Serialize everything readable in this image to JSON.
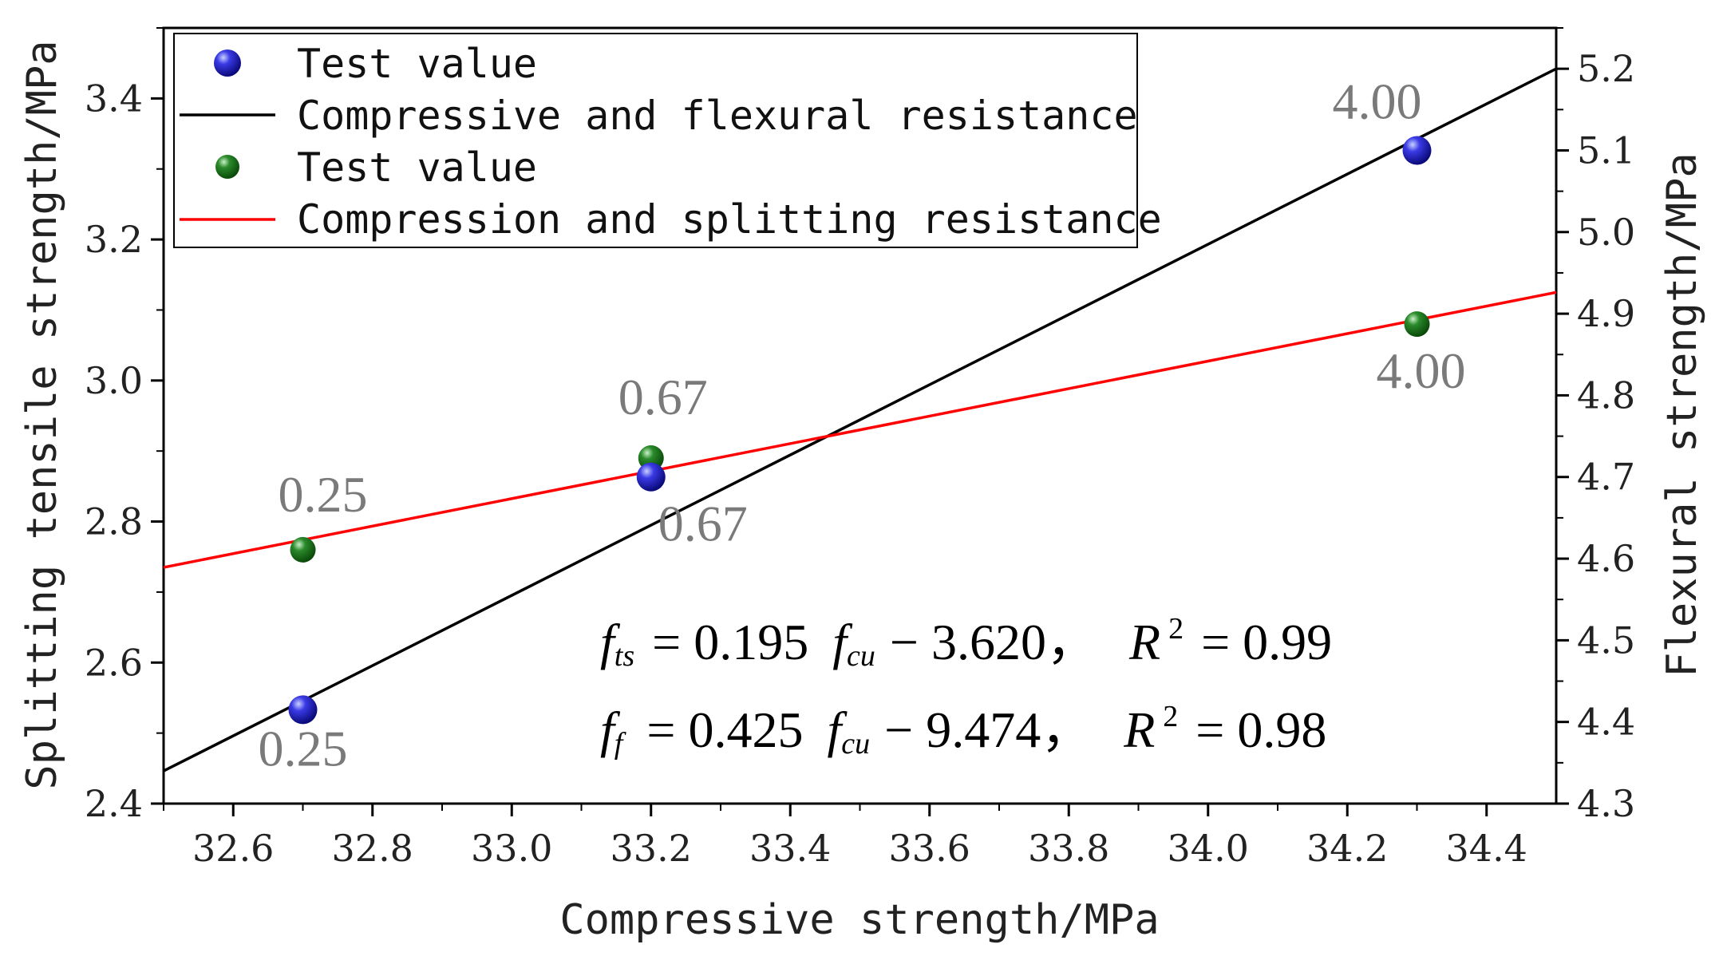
{
  "chart_data": {
    "type": "scatter",
    "xlabel": "Compressive strength/MPa",
    "ylabel_left": "Splitting tensile strength/MPa",
    "ylabel_right": "Flexural strength/MPa",
    "xlim": [
      32.5,
      34.5
    ],
    "ylim_left": [
      2.4,
      3.5
    ],
    "ylim_right": [
      4.3,
      5.25
    ],
    "x_ticks": [
      "32.6",
      "32.8",
      "33.0",
      "33.2",
      "33.4",
      "33.6",
      "33.8",
      "34.0",
      "34.2",
      "34.4"
    ],
    "y_left_ticks": [
      "2.4",
      "2.6",
      "2.8",
      "3.0",
      "3.2",
      "3.4"
    ],
    "y_right_ticks": [
      "4.3",
      "4.4",
      "4.5",
      "4.6",
      "4.7",
      "4.8",
      "4.9",
      "5.0",
      "5.1",
      "5.2"
    ],
    "legend": {
      "position": "top-left",
      "entries": [
        {
          "label": "Test value",
          "marker": "blue-sphere"
        },
        {
          "label": "Compressive and flexural resistance",
          "marker": "black-line"
        },
        {
          "label": "Test value",
          "marker": "green-sphere"
        },
        {
          "label": "Compression and splitting resistance",
          "marker": "red-line"
        }
      ]
    },
    "series": [
      {
        "id": "flexural-points",
        "axis": "right",
        "color": "#1a1acc",
        "points": [
          {
            "x": 32.7,
            "y": 4.415,
            "label": "0.25"
          },
          {
            "x": 33.2,
            "y": 4.7,
            "label": "0.67"
          },
          {
            "x": 34.3,
            "y": 5.1,
            "label": "4.00"
          }
        ]
      },
      {
        "id": "splitting-points",
        "axis": "left",
        "color": "#1a6b1a",
        "points": [
          {
            "x": 32.7,
            "y": 2.76,
            "label": "0.25"
          },
          {
            "x": 33.2,
            "y": 2.89,
            "label": "0.67"
          },
          {
            "x": 34.3,
            "y": 3.08,
            "label": "4.00"
          }
        ]
      },
      {
        "id": "flexural-fit",
        "axis": "right",
        "color": "#000000",
        "line": [
          [
            32.5,
            4.34
          ],
          [
            34.5,
            5.2
          ]
        ]
      },
      {
        "id": "splitting-fit",
        "axis": "left",
        "color": "#ff0000",
        "line": [
          [
            32.5,
            2.735
          ],
          [
            34.5,
            3.125
          ]
        ]
      }
    ],
    "equations": [
      {
        "lhs": "f",
        "lhs_sub": "ts",
        "coef": "= 0.195",
        "var": "f",
        "var_sub": "cu",
        "const": "− 3.620，",
        "r": "R",
        "r_sup": "2",
        "r_val": "= 0.99"
      },
      {
        "lhs": "f",
        "lhs_sub": "f",
        "coef": "= 0.425",
        "var": "f",
        "var_sub": "cu",
        "const": "− 9.474，",
        "r": "R",
        "r_sup": "2",
        "r_val": "= 0.98"
      }
    ]
  }
}
